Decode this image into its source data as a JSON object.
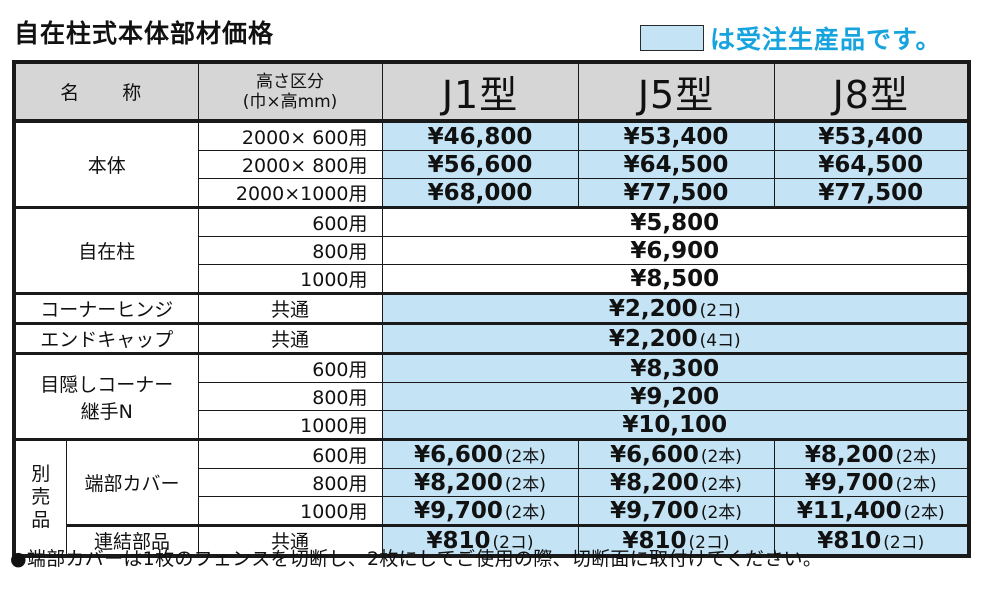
{
  "title": "自在柱式本体部材価格",
  "legend_text": "は受注生産品です。",
  "colors": {
    "made_to_order": "#c4e3f5",
    "legend_text": "#17a4de",
    "header_bg": "#d6d6d6"
  },
  "header": {
    "name": "名　称",
    "size_line1": "高さ区分",
    "size_line2": "(巾×高mm)",
    "types": [
      "J1型",
      "J5型",
      "J8型"
    ]
  },
  "honntai": {
    "name": "本体",
    "rows": [
      {
        "size": "2000× 600用",
        "prices": [
          "¥46,800",
          "¥53,400",
          "¥53,400"
        ]
      },
      {
        "size": "2000× 800用",
        "prices": [
          "¥56,600",
          "¥64,500",
          "¥64,500"
        ]
      },
      {
        "size": "2000×1000用",
        "prices": [
          "¥68,000",
          "¥77,500",
          "¥77,500"
        ]
      }
    ]
  },
  "jizai": {
    "name": "自在柱",
    "rows": [
      {
        "size": "600用",
        "price": "¥5,800"
      },
      {
        "size": "800用",
        "price": "¥6,900"
      },
      {
        "size": "1000用",
        "price": "¥8,500"
      }
    ]
  },
  "hinge": {
    "name": "コーナーヒンジ",
    "size": "共通",
    "price": "¥2,200",
    "qty": "(2コ)"
  },
  "cap": {
    "name": "エンドキャップ",
    "size": "共通",
    "price": "¥2,200",
    "qty": "(4コ)"
  },
  "mekakushi": {
    "name_line1": "目隠しコーナー",
    "name_line2": "継手N",
    "rows": [
      {
        "size": "600用",
        "price": "¥8,300"
      },
      {
        "size": "800用",
        "price": "¥9,200"
      },
      {
        "size": "1000用",
        "price": "¥10,100"
      }
    ]
  },
  "betsubai": {
    "label": [
      "別",
      "売",
      "品"
    ],
    "cover": {
      "name": "端部カバー",
      "rows": [
        {
          "size": "600用",
          "prices": [
            "¥6,600",
            "¥6,600",
            "¥8,200"
          ],
          "qty": "(2本)"
        },
        {
          "size": "800用",
          "prices": [
            "¥8,200",
            "¥8,200",
            "¥9,700"
          ],
          "qty": "(2本)"
        },
        {
          "size": "1000用",
          "prices": [
            "¥9,700",
            "¥9,700",
            "¥11,400"
          ],
          "qty": "(2本)"
        }
      ]
    },
    "renketsu": {
      "name": "連結部品",
      "size": "共通",
      "prices": [
        "¥810",
        "¥810",
        "¥810"
      ],
      "qty": "(2コ)"
    }
  },
  "note": "●端部カバーは1枚のフェンスを切断し、2枚にしてご使用の際、切断面に取付けてください。"
}
